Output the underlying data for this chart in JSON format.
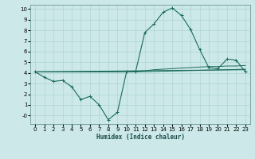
{
  "xlabel": "Humidex (Indice chaleur)",
  "ylabel": "",
  "bg_color": "#cce8e8",
  "grid_color": "#aed4d4",
  "line_color": "#1a6b5a",
  "xlim": [
    -0.5,
    23.5
  ],
  "ylim": [
    -0.8,
    10.4
  ],
  "xticks": [
    0,
    1,
    2,
    3,
    4,
    5,
    6,
    7,
    8,
    9,
    10,
    11,
    12,
    13,
    14,
    15,
    16,
    17,
    18,
    19,
    20,
    21,
    22,
    23
  ],
  "yticks": [
    0,
    1,
    2,
    3,
    4,
    5,
    6,
    7,
    8,
    9,
    10
  ],
  "ytick_labels": [
    "-0",
    "1",
    "2",
    "3",
    "4",
    "5",
    "6",
    "7",
    "8",
    "9",
    "10"
  ],
  "series1_x": [
    0,
    1,
    2,
    3,
    4,
    5,
    6,
    7,
    8,
    9,
    10,
    11,
    12,
    13,
    14,
    15,
    16,
    17,
    18,
    19,
    20,
    21,
    22,
    23
  ],
  "series1_y": [
    4.1,
    3.6,
    3.2,
    3.3,
    2.7,
    1.5,
    1.8,
    1.0,
    -0.4,
    0.3,
    4.1,
    4.15,
    7.8,
    8.6,
    9.7,
    10.1,
    9.4,
    8.1,
    6.2,
    4.5,
    4.4,
    5.3,
    5.2,
    4.1
  ],
  "series2_x": [
    0,
    10,
    11,
    12,
    13,
    14,
    15,
    16,
    17,
    18,
    19,
    20,
    21,
    22,
    23
  ],
  "series2_y": [
    4.1,
    4.1,
    4.15,
    4.2,
    4.3,
    4.35,
    4.4,
    4.45,
    4.5,
    4.55,
    4.6,
    4.6,
    4.65,
    4.65,
    4.7
  ],
  "series3_x": [
    0,
    10,
    11,
    12,
    13,
    14,
    15,
    16,
    17,
    18,
    19,
    20,
    21,
    22,
    23
  ],
  "series3_y": [
    4.1,
    4.1,
    4.1,
    4.12,
    4.14,
    4.16,
    4.18,
    4.2,
    4.22,
    4.24,
    4.26,
    4.28,
    4.3,
    4.32,
    4.35
  ],
  "series4_x": [
    0,
    23
  ],
  "series4_y": [
    4.1,
    4.3
  ],
  "figsize": [
    3.2,
    2.0
  ],
  "dpi": 100
}
